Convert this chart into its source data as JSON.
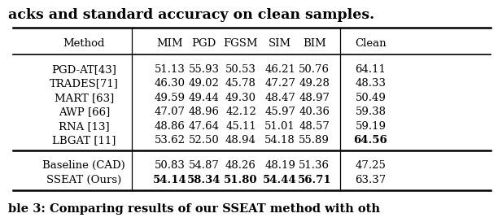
{
  "title_partial": "acks and standard accuracy on clean samples.",
  "caption": "ble 3: Comparing results of our SSEAT method with oth",
  "columns": [
    "Method",
    "MIM",
    "PGD",
    "FGSM",
    "SIM",
    "BIM",
    "Clean"
  ],
  "group1": [
    [
      "PGD-AT[43]",
      "51.13",
      "55.93",
      "50.53",
      "46.21",
      "50.76",
      "64.11"
    ],
    [
      "TRADES[71]",
      "46.30",
      "49.02",
      "45.78",
      "47.27",
      "49.28",
      "48.33"
    ],
    [
      "MART [63]",
      "49.59",
      "49.44",
      "49.30",
      "48.47",
      "48.97",
      "50.49"
    ],
    [
      "AWP [66]",
      "47.07",
      "48.96",
      "42.12",
      "45.97",
      "40.36",
      "59.38"
    ],
    [
      "RNA [13]",
      "48.86",
      "47.64",
      "45.11",
      "51.01",
      "48.57",
      "59.19"
    ],
    [
      "LBGAT [11]",
      "53.62",
      "52.50",
      "48.94",
      "54.18",
      "55.89",
      "64.56"
    ]
  ],
  "group2": [
    [
      "Baseline (CAD)",
      "50.83",
      "54.87",
      "48.26",
      "48.19",
      "51.36",
      "47.25"
    ],
    [
      "SSEAT (Ours)",
      "54.14",
      "58.34",
      "51.80",
      "54.44",
      "56.71",
      "63.37"
    ]
  ],
  "bold_cells": {
    "LBGAT [11]": [
      6
    ],
    "SSEAT (Ours)": [
      1,
      2,
      3,
      4,
      5
    ]
  },
  "bg_color": "#ffffff",
  "text_color": "#000000",
  "data_fontsize": 9.5,
  "header_fontsize": 9.5,
  "title_fontsize": 12.5,
  "caption_fontsize": 10.5
}
